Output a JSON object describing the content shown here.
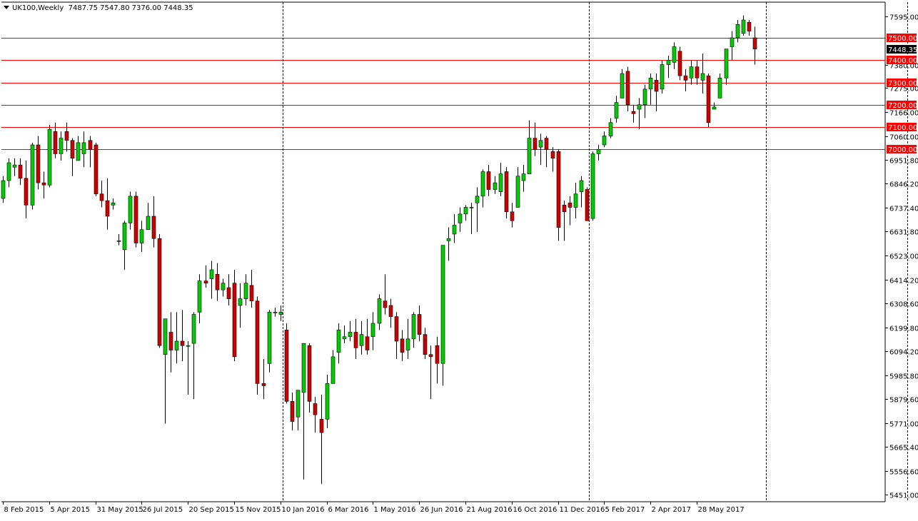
{
  "header": {
    "symbol": "UK100,Weekly",
    "ohlc": "7487.75 7547.80 7376.00 7448.35"
  },
  "colors": {
    "bull": "#00cc00",
    "bear": "#cc0000",
    "level_line": "#ff0000",
    "level_box": "#ff0000",
    "current_box": "#000000",
    "axis_text": "#000000",
    "separator": "#000000"
  },
  "chart_data": {
    "type": "candlestick",
    "symbol": "UK100",
    "timeframe": "Weekly",
    "ylim": [
      5420,
      7660
    ],
    "y_ticks": [
      "7595.00",
      "7380.00",
      "7275.00",
      "7166.00",
      "7060.00",
      "6951.80",
      "6846.20",
      "6737.40",
      "6631.80",
      "6523.00",
      "6414.20",
      "6308.60",
      "6199.80",
      "6094.20",
      "5985.80",
      "5879.60",
      "5771.00",
      "5665.40",
      "5556.60",
      "5451.00"
    ],
    "x_ticks": [
      "8 Feb 2015",
      "5 Apr 2015",
      "31 May 2015",
      "26 Jul 2015",
      "20 Sep 2015",
      "15 Nov 2015",
      "10 Jan 2016",
      "6 Mar 2016",
      "1 May 2016",
      "26 Jun 2016",
      "21 Aug 2016",
      "16 Oct 2016",
      "11 Dec 2016",
      "5 Feb 2017",
      "2 Apr 2017",
      "28 May 2017"
    ],
    "levels": [
      {
        "value": 7500,
        "label": "7500.00"
      },
      {
        "value": 7400,
        "label": "7400.00"
      },
      {
        "value": 7300,
        "label": "7300.00"
      },
      {
        "value": 7200,
        "label": "7200.00"
      },
      {
        "value": 7100,
        "label": "7100.00"
      },
      {
        "value": 7000,
        "label": "7000.00"
      }
    ],
    "current_price": {
      "value": 7448.35,
      "label": "7448.35"
    },
    "period_separators": [
      49,
      102,
      157
    ],
    "candles": [
      {
        "o": 6780,
        "h": 6880,
        "l": 6760,
        "c": 6860
      },
      {
        "o": 6860,
        "h": 6960,
        "l": 6830,
        "c": 6940
      },
      {
        "o": 6920,
        "h": 6960,
        "l": 6880,
        "c": 6930
      },
      {
        "o": 6930,
        "h": 6960,
        "l": 6840,
        "c": 6870
      },
      {
        "o": 6870,
        "h": 6950,
        "l": 6690,
        "c": 6750
      },
      {
        "o": 6750,
        "h": 7030,
        "l": 6730,
        "c": 7020
      },
      {
        "o": 7020,
        "h": 7060,
        "l": 6820,
        "c": 6850
      },
      {
        "o": 6850,
        "h": 6900,
        "l": 6780,
        "c": 6840
      },
      {
        "o": 6840,
        "h": 7110,
        "l": 6830,
        "c": 7090
      },
      {
        "o": 7080,
        "h": 7120,
        "l": 6960,
        "c": 6980
      },
      {
        "o": 6980,
        "h": 7080,
        "l": 6950,
        "c": 7050
      },
      {
        "o": 7080,
        "h": 7120,
        "l": 6990,
        "c": 7040
      },
      {
        "o": 7040,
        "h": 7050,
        "l": 6880,
        "c": 6960
      },
      {
        "o": 6950,
        "h": 7060,
        "l": 6950,
        "c": 7030
      },
      {
        "o": 6980,
        "h": 7080,
        "l": 6920,
        "c": 7030
      },
      {
        "o": 7040,
        "h": 7060,
        "l": 6920,
        "c": 7000
      },
      {
        "o": 7020,
        "h": 7030,
        "l": 6790,
        "c": 6800
      },
      {
        "o": 6800,
        "h": 6860,
        "l": 6740,
        "c": 6770
      },
      {
        "o": 6770,
        "h": 6870,
        "l": 6640,
        "c": 6700
      },
      {
        "o": 6750,
        "h": 6780,
        "l": 6730,
        "c": 6760
      },
      {
        "o": 6590,
        "h": 6620,
        "l": 6570,
        "c": 6590
      },
      {
        "o": 6550,
        "h": 6680,
        "l": 6460,
        "c": 6670
      },
      {
        "o": 6670,
        "h": 6810,
        "l": 6640,
        "c": 6790
      },
      {
        "o": 6790,
        "h": 6810,
        "l": 6560,
        "c": 6580
      },
      {
        "o": 6580,
        "h": 6680,
        "l": 6540,
        "c": 6640
      },
      {
        "o": 6640,
        "h": 6760,
        "l": 6640,
        "c": 6700
      },
      {
        "o": 6700,
        "h": 6790,
        "l": 6560,
        "c": 6600
      },
      {
        "o": 6600,
        "h": 6620,
        "l": 6110,
        "c": 6120
      },
      {
        "o": 6080,
        "h": 6240,
        "l": 5770,
        "c": 6240
      },
      {
        "o": 6180,
        "h": 6270,
        "l": 6000,
        "c": 6100
      },
      {
        "o": 6100,
        "h": 6270,
        "l": 6040,
        "c": 6140
      },
      {
        "o": 6140,
        "h": 6280,
        "l": 6050,
        "c": 6120
      },
      {
        "o": 6120,
        "h": 6140,
        "l": 5900,
        "c": 6120
      },
      {
        "o": 6130,
        "h": 6270,
        "l": 5880,
        "c": 6260
      },
      {
        "o": 6270,
        "h": 6440,
        "l": 6220,
        "c": 6410
      },
      {
        "o": 6410,
        "h": 6480,
        "l": 6380,
        "c": 6400
      },
      {
        "o": 6420,
        "h": 6500,
        "l": 6330,
        "c": 6460
      },
      {
        "o": 6440,
        "h": 6490,
        "l": 6320,
        "c": 6370
      },
      {
        "o": 6370,
        "h": 6420,
        "l": 6340,
        "c": 6400
      },
      {
        "o": 6380,
        "h": 6440,
        "l": 6300,
        "c": 6330
      },
      {
        "o": 6400,
        "h": 6460,
        "l": 6050,
        "c": 6070
      },
      {
        "o": 6300,
        "h": 6400,
        "l": 6200,
        "c": 6330
      },
      {
        "o": 6330,
        "h": 6440,
        "l": 6300,
        "c": 6400
      },
      {
        "o": 6390,
        "h": 6460,
        "l": 6290,
        "c": 6320
      },
      {
        "o": 6320,
        "h": 6340,
        "l": 5900,
        "c": 5950
      },
      {
        "o": 5950,
        "h": 6060,
        "l": 5880,
        "c": 5940
      },
      {
        "o": 6040,
        "h": 6280,
        "l": 6000,
        "c": 6270
      },
      {
        "o": 6270,
        "h": 6290,
        "l": 6250,
        "c": 6270
      },
      {
        "o": 6260,
        "h": 6300,
        "l": 6230,
        "c": 6270
      },
      {
        "o": 6190,
        "h": 6220,
        "l": 5860,
        "c": 5870
      },
      {
        "o": 5870,
        "h": 5910,
        "l": 5740,
        "c": 5780
      },
      {
        "o": 5800,
        "h": 5920,
        "l": 5740,
        "c": 5920
      },
      {
        "o": 5910,
        "h": 6130,
        "l": 5520,
        "c": 6130
      },
      {
        "o": 6120,
        "h": 6130,
        "l": 5820,
        "c": 5870
      },
      {
        "o": 5860,
        "h": 5890,
        "l": 5730,
        "c": 5810
      },
      {
        "o": 5790,
        "h": 5900,
        "l": 5500,
        "c": 5730
      },
      {
        "o": 5790,
        "h": 5990,
        "l": 5750,
        "c": 5950
      },
      {
        "o": 5950,
        "h": 6100,
        "l": 5950,
        "c": 6070
      },
      {
        "o": 6090,
        "h": 6220,
        "l": 6040,
        "c": 6190
      },
      {
        "o": 6150,
        "h": 6210,
        "l": 6130,
        "c": 6160
      },
      {
        "o": 6160,
        "h": 6230,
        "l": 6140,
        "c": 6180
      },
      {
        "o": 6180,
        "h": 6240,
        "l": 6060,
        "c": 6110
      },
      {
        "o": 6120,
        "h": 6230,
        "l": 6080,
        "c": 6170
      },
      {
        "o": 6160,
        "h": 6240,
        "l": 6080,
        "c": 6100
      },
      {
        "o": 6160,
        "h": 6270,
        "l": 6100,
        "c": 6220
      },
      {
        "o": 6220,
        "h": 6350,
        "l": 6190,
        "c": 6330
      },
      {
        "o": 6320,
        "h": 6440,
        "l": 6260,
        "c": 6290
      },
      {
        "o": 6300,
        "h": 6330,
        "l": 6200,
        "c": 6250
      },
      {
        "o": 6250,
        "h": 6270,
        "l": 6060,
        "c": 6140
      },
      {
        "o": 6150,
        "h": 6190,
        "l": 6050,
        "c": 6090
      },
      {
        "o": 6100,
        "h": 6240,
        "l": 6060,
        "c": 6150
      },
      {
        "o": 6150,
        "h": 6270,
        "l": 6110,
        "c": 6260
      },
      {
        "o": 6260,
        "h": 6300,
        "l": 6140,
        "c": 6170
      },
      {
        "o": 6170,
        "h": 6200,
        "l": 6060,
        "c": 6080
      },
      {
        "o": 6080,
        "h": 6120,
        "l": 5880,
        "c": 6070
      },
      {
        "o": 6120,
        "h": 6160,
        "l": 5950,
        "c": 6040
      },
      {
        "o": 6040,
        "h": 6570,
        "l": 5940,
        "c": 6570
      },
      {
        "o": 6590,
        "h": 6650,
        "l": 6500,
        "c": 6600
      },
      {
        "o": 6620,
        "h": 6710,
        "l": 6580,
        "c": 6660
      },
      {
        "o": 6670,
        "h": 6740,
        "l": 6630,
        "c": 6710
      },
      {
        "o": 6710,
        "h": 6750,
        "l": 6680,
        "c": 6740
      },
      {
        "o": 6740,
        "h": 6760,
        "l": 6620,
        "c": 6740
      },
      {
        "o": 6760,
        "h": 6830,
        "l": 6630,
        "c": 6790
      },
      {
        "o": 6790,
        "h": 6910,
        "l": 6740,
        "c": 6900
      },
      {
        "o": 6900,
        "h": 6930,
        "l": 6790,
        "c": 6820
      },
      {
        "o": 6820,
        "h": 6880,
        "l": 6800,
        "c": 6850
      },
      {
        "o": 6810,
        "h": 6940,
        "l": 6790,
        "c": 6890
      },
      {
        "o": 6900,
        "h": 6920,
        "l": 6690,
        "c": 6720
      },
      {
        "o": 6720,
        "h": 6760,
        "l": 6650,
        "c": 6680
      },
      {
        "o": 6740,
        "h": 6920,
        "l": 6740,
        "c": 6880
      },
      {
        "o": 6860,
        "h": 6930,
        "l": 6810,
        "c": 6890
      },
      {
        "o": 6890,
        "h": 7130,
        "l": 6890,
        "c": 7050
      },
      {
        "o": 7050,
        "h": 7120,
        "l": 6970,
        "c": 7000
      },
      {
        "o": 7010,
        "h": 7070,
        "l": 6930,
        "c": 7040
      },
      {
        "o": 7050,
        "h": 7060,
        "l": 6920,
        "c": 7000
      },
      {
        "o": 6990,
        "h": 7010,
        "l": 6900,
        "c": 6960
      },
      {
        "o": 6990,
        "h": 7000,
        "l": 6590,
        "c": 6650
      },
      {
        "o": 6750,
        "h": 6770,
        "l": 6590,
        "c": 6720
      },
      {
        "o": 6760,
        "h": 6790,
        "l": 6660,
        "c": 6740
      },
      {
        "o": 6740,
        "h": 6850,
        "l": 6690,
        "c": 6800
      },
      {
        "o": 6810,
        "h": 6880,
        "l": 6740,
        "c": 6860
      },
      {
        "o": 6820,
        "h": 6830,
        "l": 6680,
        "c": 6680
      },
      {
        "o": 6690,
        "h": 6990,
        "l": 6680,
        "c": 6980
      },
      {
        "o": 6980,
        "h": 7020,
        "l": 6950,
        "c": 7000
      },
      {
        "o": 7020,
        "h": 7080,
        "l": 7010,
        "c": 7060
      },
      {
        "o": 7060,
        "h": 7140,
        "l": 7050,
        "c": 7120
      },
      {
        "o": 7140,
        "h": 7240,
        "l": 7120,
        "c": 7210
      },
      {
        "o": 7230,
        "h": 7360,
        "l": 7230,
        "c": 7340
      },
      {
        "o": 7350,
        "h": 7370,
        "l": 7170,
        "c": 7200
      },
      {
        "o": 7170,
        "h": 7200,
        "l": 7120,
        "c": 7160
      },
      {
        "o": 7180,
        "h": 7230,
        "l": 7090,
        "c": 7200
      },
      {
        "o": 7200,
        "h": 7290,
        "l": 7140,
        "c": 7270
      },
      {
        "o": 7270,
        "h": 7340,
        "l": 7200,
        "c": 7320
      },
      {
        "o": 7310,
        "h": 7340,
        "l": 7170,
        "c": 7260
      },
      {
        "o": 7270,
        "h": 7400,
        "l": 7250,
        "c": 7380
      },
      {
        "o": 7380,
        "h": 7420,
        "l": 7320,
        "c": 7400
      },
      {
        "o": 7390,
        "h": 7480,
        "l": 7360,
        "c": 7460
      },
      {
        "o": 7440,
        "h": 7460,
        "l": 7310,
        "c": 7330
      },
      {
        "o": 7330,
        "h": 7360,
        "l": 7260,
        "c": 7310
      },
      {
        "o": 7320,
        "h": 7400,
        "l": 7290,
        "c": 7370
      },
      {
        "o": 7370,
        "h": 7400,
        "l": 7290,
        "c": 7320
      },
      {
        "o": 7310,
        "h": 7430,
        "l": 7250,
        "c": 7340
      },
      {
        "o": 7330,
        "h": 7340,
        "l": 7100,
        "c": 7120
      },
      {
        "o": 7180,
        "h": 7210,
        "l": 7180,
        "c": 7190
      },
      {
        "o": 7230,
        "h": 7340,
        "l": 7230,
        "c": 7320
      },
      {
        "o": 7320,
        "h": 7450,
        "l": 7290,
        "c": 7450
      },
      {
        "o": 7460,
        "h": 7530,
        "l": 7400,
        "c": 7500
      },
      {
        "o": 7500,
        "h": 7580,
        "l": 7480,
        "c": 7560
      },
      {
        "o": 7520,
        "h": 7600,
        "l": 7510,
        "c": 7580
      },
      {
        "o": 7570,
        "h": 7580,
        "l": 7510,
        "c": 7530
      },
      {
        "o": 7500,
        "h": 7550,
        "l": 7380,
        "c": 7450
      }
    ]
  }
}
